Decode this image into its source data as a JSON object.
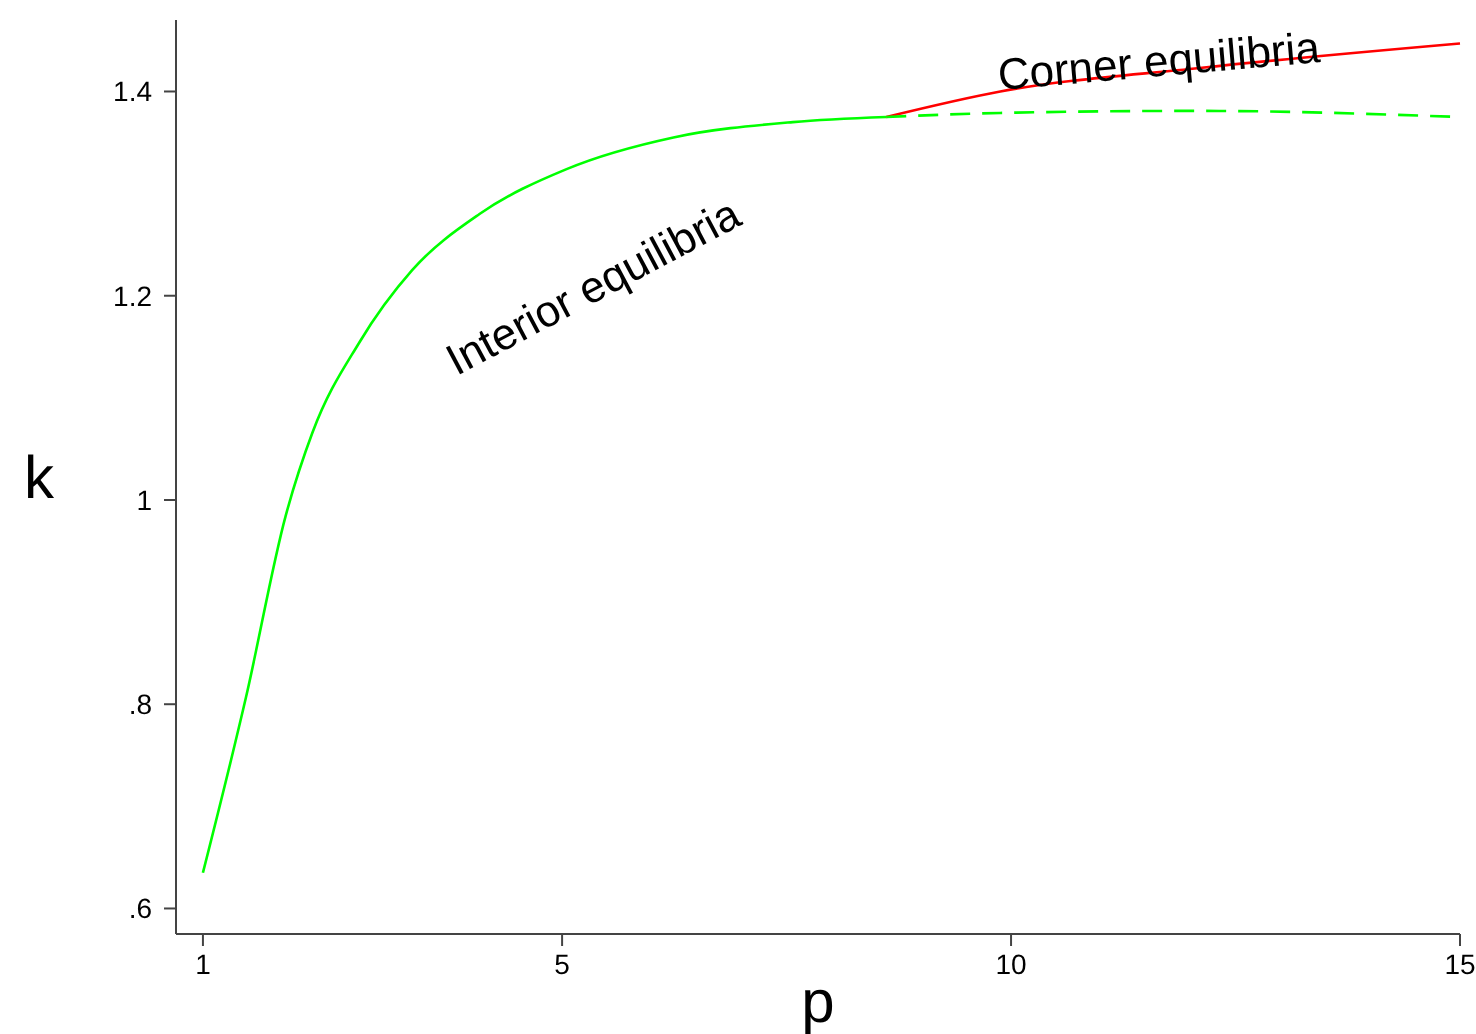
{
  "chart_data": {
    "type": "line",
    "xlabel": "p",
    "ylabel": "k",
    "xlim": [
      0.7,
      15
    ],
    "ylim": [
      0.575,
      1.47
    ],
    "xticks": [
      1,
      5,
      10,
      15
    ],
    "yticks": [
      {
        "value": 0.6,
        "label": ".6"
      },
      {
        "value": 0.8,
        "label": ".8"
      },
      1,
      1.2,
      1.4
    ],
    "grid": false,
    "series": [
      {
        "color": "#00ff00",
        "line_style": "solid",
        "x": [
          1,
          1.48,
          1.92,
          2.22,
          2.74,
          3.33,
          4.08,
          5.05,
          6.24,
          7.57,
          8.61
        ],
        "values": [
          0.635,
          0.807,
          0.984,
          1.066,
          1.154,
          1.225,
          1.28,
          1.324,
          1.355,
          1.37,
          1.375
        ]
      },
      {
        "color": "#ff0000",
        "line_style": "solid",
        "x": [
          8.61,
          9.88,
          12.1,
          15
        ],
        "values": [
          1.375,
          1.4,
          1.423,
          1.447
        ]
      },
      {
        "color": "#00ff00",
        "line_style": "dashed",
        "x": [
          8.61,
          9.88,
          12.1,
          15
        ],
        "values": [
          1.375,
          1.379,
          1.381,
          1.375
        ]
      }
    ],
    "annotations": [
      "Interior equilibria",
      "Corner equilibria"
    ]
  }
}
